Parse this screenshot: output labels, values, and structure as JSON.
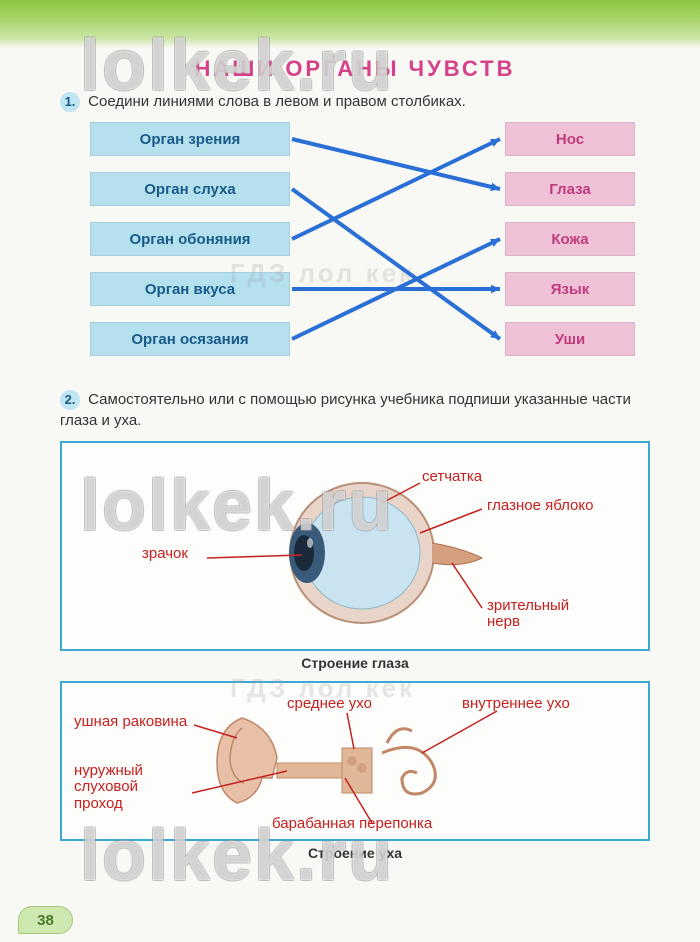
{
  "watermark": "lolkek.ru",
  "ghost_text": "ГДЗ лол кек",
  "title": "НАШИ ОРГАНЫ ЧУВСТВ",
  "task1": {
    "num": "1.",
    "text": "Соедини линиями слова в левом и правом столбиках."
  },
  "task2": {
    "num": "2.",
    "text": "Самостоятельно или с помощью рисунка учебника подпиши указанные части глаза и уха."
  },
  "left_items": [
    "Орган зрения",
    "Орган слуха",
    "Орган обоняния",
    "Орган вкуса",
    "Орган осязания"
  ],
  "right_items": [
    "Нос",
    "Глаза",
    "Кожа",
    "Язык",
    "Уши"
  ],
  "colors": {
    "left_box": "#b5e1ee",
    "right_box": "#efc2d8",
    "arrow": "#2a6fd6",
    "frame": "#3ba9d1",
    "label": "#c62020",
    "title": "#d6418a"
  },
  "connections": [
    [
      0,
      1
    ],
    [
      1,
      4
    ],
    [
      2,
      0
    ],
    [
      3,
      3
    ],
    [
      4,
      2
    ]
  ],
  "eye": {
    "caption": "Строение глаза",
    "labels": {
      "pupil": "зрачок",
      "retina": "сетчатка",
      "eyeball": "глазное яблоко",
      "nerve": "зрительный\nнерв"
    }
  },
  "ear": {
    "caption": "Строение уха",
    "labels": {
      "auricle": "ушная раковина",
      "canal": "нуружный\nслуховой\nпроход",
      "middle": "среднее ухо",
      "drum": "барабанная перепонка",
      "inner": "внутреннее ухо"
    }
  },
  "page_number": "38"
}
